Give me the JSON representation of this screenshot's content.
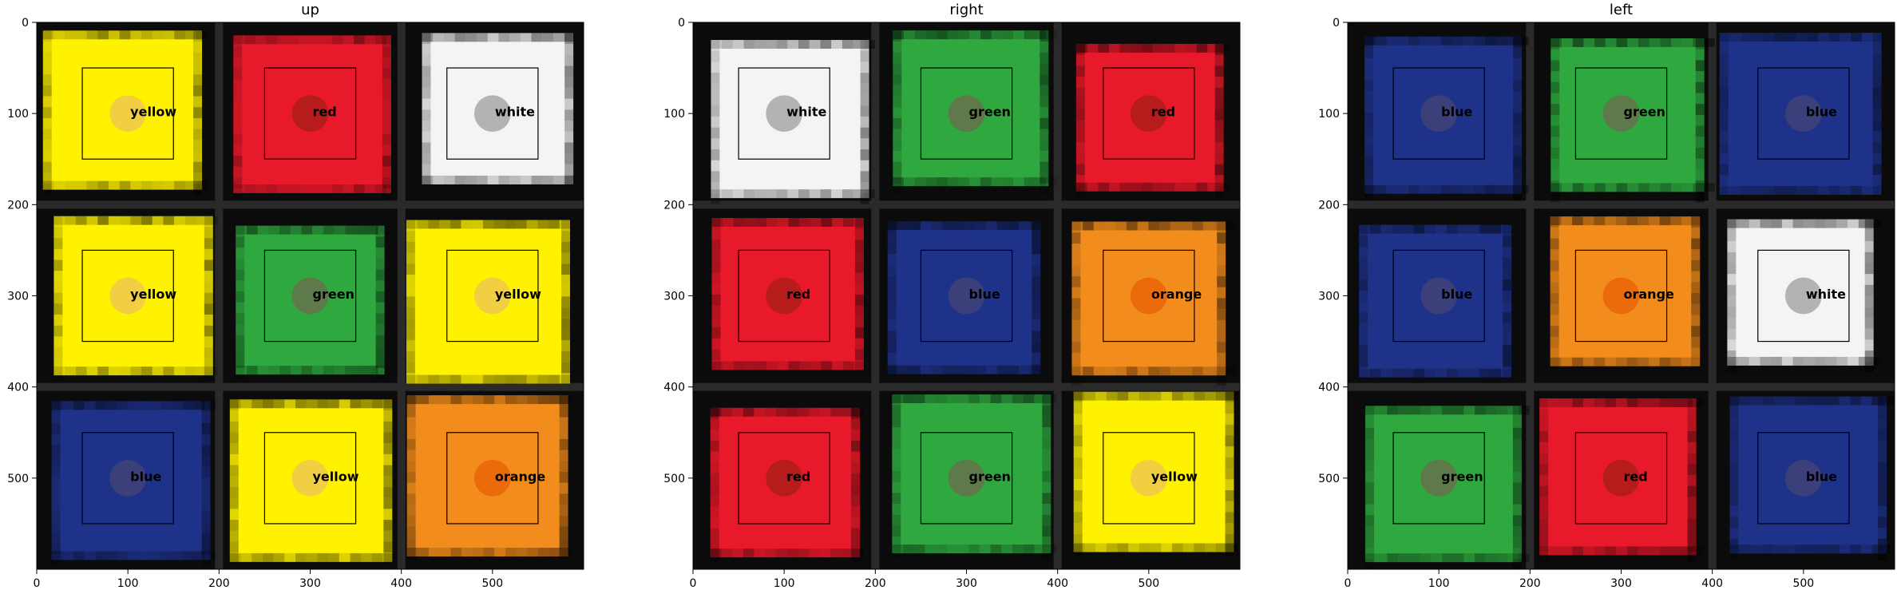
{
  "chart_data": [
    {
      "type": "heatmap",
      "title": "up",
      "xlim": [
        0,
        600
      ],
      "ylim": [
        600,
        0
      ],
      "x_ticks": [
        0,
        100,
        200,
        300,
        400,
        500
      ],
      "y_ticks": [
        0,
        100,
        200,
        300,
        400,
        500
      ],
      "grid": false,
      "cells": [
        {
          "row": 0,
          "col": 0,
          "label": "yellow",
          "fill": "#fff200",
          "marker": "#f2cf42"
        },
        {
          "row": 0,
          "col": 1,
          "label": "red",
          "fill": "#e8192a",
          "marker": "#b71c1c"
        },
        {
          "row": 0,
          "col": 2,
          "label": "white",
          "fill": "#f4f4f4",
          "marker": "#b3b3b3"
        },
        {
          "row": 1,
          "col": 0,
          "label": "yellow",
          "fill": "#fff200",
          "marker": "#f2cf42"
        },
        {
          "row": 1,
          "col": 1,
          "label": "green",
          "fill": "#2ea83f",
          "marker": "#5e7a4a"
        },
        {
          "row": 1,
          "col": 2,
          "label": "yellow",
          "fill": "#fff200",
          "marker": "#f2cf42"
        },
        {
          "row": 2,
          "col": 0,
          "label": "blue",
          "fill": "#1f3289",
          "marker": "#3b3f7a"
        },
        {
          "row": 2,
          "col": 1,
          "label": "yellow",
          "fill": "#fff200",
          "marker": "#f2cf42"
        },
        {
          "row": 2,
          "col": 2,
          "label": "orange",
          "fill": "#f28c1c",
          "marker": "#ea6a0c"
        }
      ]
    },
    {
      "type": "heatmap",
      "title": "right",
      "xlim": [
        0,
        600
      ],
      "ylim": [
        600,
        0
      ],
      "x_ticks": [
        0,
        100,
        200,
        300,
        400,
        500
      ],
      "y_ticks": [
        0,
        100,
        200,
        300,
        400,
        500
      ],
      "grid": false,
      "cells": [
        {
          "row": 0,
          "col": 0,
          "label": "white",
          "fill": "#f4f4f4",
          "marker": "#b3b3b3"
        },
        {
          "row": 0,
          "col": 1,
          "label": "green",
          "fill": "#2ea83f",
          "marker": "#5e7a4a"
        },
        {
          "row": 0,
          "col": 2,
          "label": "red",
          "fill": "#e8192a",
          "marker": "#b71c1c"
        },
        {
          "row": 1,
          "col": 0,
          "label": "red",
          "fill": "#e8192a",
          "marker": "#b71c1c"
        },
        {
          "row": 1,
          "col": 1,
          "label": "blue",
          "fill": "#1f3289",
          "marker": "#3b3f7a"
        },
        {
          "row": 1,
          "col": 2,
          "label": "orange",
          "fill": "#f28c1c",
          "marker": "#ea6a0c"
        },
        {
          "row": 2,
          "col": 0,
          "label": "red",
          "fill": "#e8192a",
          "marker": "#b71c1c"
        },
        {
          "row": 2,
          "col": 1,
          "label": "green",
          "fill": "#2ea83f",
          "marker": "#5e7a4a"
        },
        {
          "row": 2,
          "col": 2,
          "label": "yellow",
          "fill": "#fff200",
          "marker": "#f2cf42"
        }
      ]
    },
    {
      "type": "heatmap",
      "title": "left",
      "xlim": [
        0,
        600
      ],
      "ylim": [
        600,
        0
      ],
      "x_ticks": [
        0,
        100,
        200,
        300,
        400,
        500
      ],
      "y_ticks": [
        0,
        100,
        200,
        300,
        400,
        500
      ],
      "grid": false,
      "cells": [
        {
          "row": 0,
          "col": 0,
          "label": "blue",
          "fill": "#1f3289",
          "marker": "#3b3f7a"
        },
        {
          "row": 0,
          "col": 1,
          "label": "green",
          "fill": "#2ea83f",
          "marker": "#5e7a4a"
        },
        {
          "row": 0,
          "col": 2,
          "label": "blue",
          "fill": "#1f3289",
          "marker": "#3b3f7a"
        },
        {
          "row": 1,
          "col": 0,
          "label": "blue",
          "fill": "#1f3289",
          "marker": "#3b3f7a"
        },
        {
          "row": 1,
          "col": 1,
          "label": "orange",
          "fill": "#f28c1c",
          "marker": "#ea6a0c"
        },
        {
          "row": 1,
          "col": 2,
          "label": "white",
          "fill": "#f4f4f4",
          "marker": "#b3b3b3"
        },
        {
          "row": 2,
          "col": 0,
          "label": "green",
          "fill": "#2ea83f",
          "marker": "#5e7a4a"
        },
        {
          "row": 2,
          "col": 1,
          "label": "red",
          "fill": "#e8192a",
          "marker": "#b71c1c"
        },
        {
          "row": 2,
          "col": 2,
          "label": "blue",
          "fill": "#1f3289",
          "marker": "#3b3f7a"
        }
      ]
    }
  ]
}
